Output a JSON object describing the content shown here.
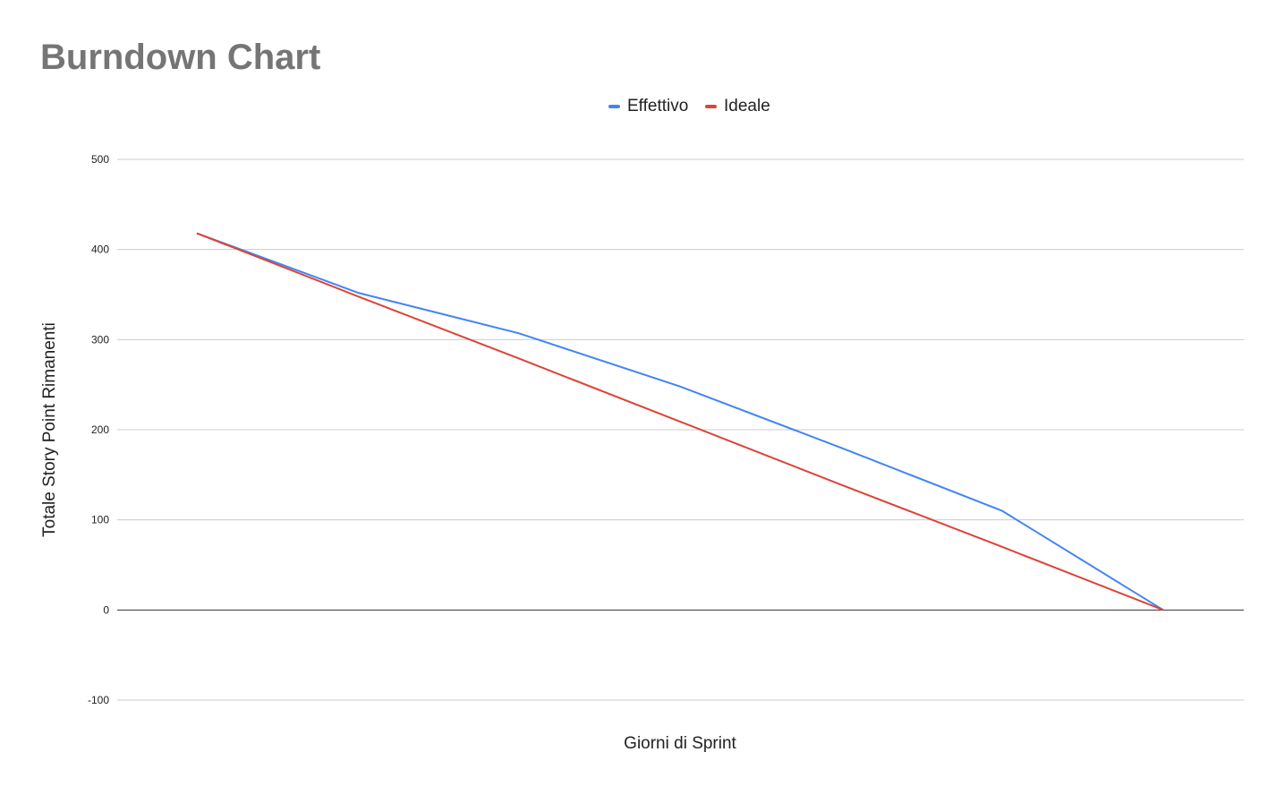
{
  "chart_data": {
    "type": "line",
    "title": "Burndown Chart",
    "xlabel": "Giorni di Sprint",
    "ylabel": "Totale Story Point Rimanenti",
    "ylim": [
      -100,
      500
    ],
    "yticks": [
      "500",
      "400",
      "300",
      "200",
      "100",
      "0",
      "-100"
    ],
    "ytick_values": [
      500,
      400,
      300,
      200,
      100,
      0,
      -100
    ],
    "x": [
      0,
      1,
      2,
      3,
      4,
      5,
      6
    ],
    "grid": true,
    "legend_position": "top",
    "series": [
      {
        "name": "Effettivo",
        "color": "#4285f4",
        "values": [
          418,
          352,
          307,
          248,
          180,
          110,
          0
        ]
      },
      {
        "name": "Ideale",
        "color": "#db4437",
        "values": [
          418,
          348,
          279,
          209,
          139,
          70,
          0
        ]
      }
    ]
  }
}
